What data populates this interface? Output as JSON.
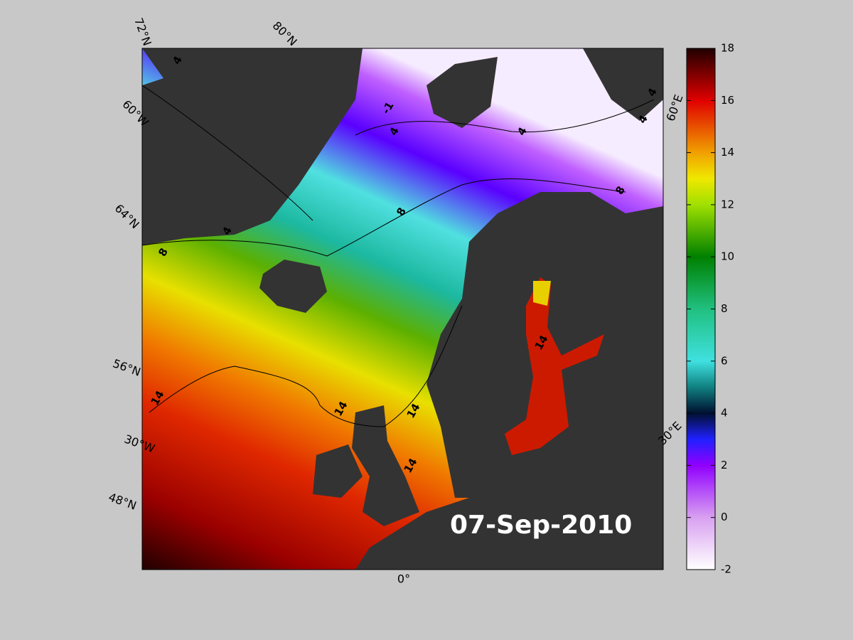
{
  "map": {
    "date": "07-Sep-2010",
    "graticule_labels": [
      "72°N",
      "80°N",
      "60°W",
      "64°N",
      "56°N",
      "30°W",
      "48°N",
      "0°",
      "30°E",
      "60°E"
    ],
    "contour_labels": [
      4,
      -1,
      4,
      4,
      4,
      4,
      4,
      8,
      8,
      8,
      14,
      14,
      14,
      14,
      14
    ],
    "colorbar": {
      "lim": [
        -2,
        18
      ],
      "ticks": [
        -2,
        0,
        2,
        4,
        6,
        8,
        10,
        12,
        14,
        16,
        18
      ]
    }
  }
}
